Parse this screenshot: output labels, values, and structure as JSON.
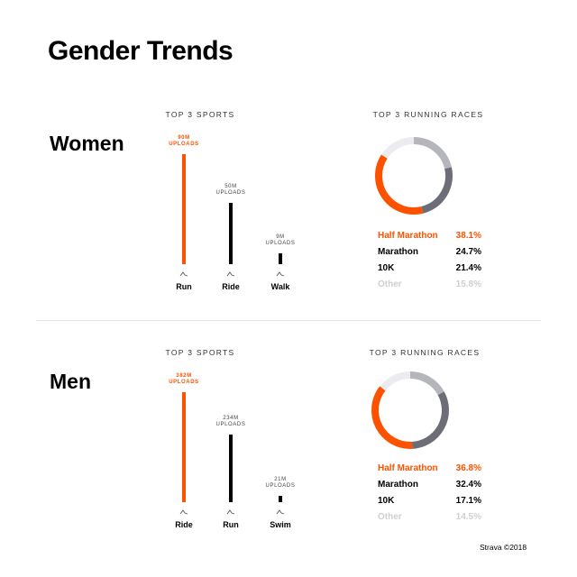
{
  "title": "Gender Trends",
  "footer": "Strava ©2018",
  "chart_data": [
    {
      "type": "bar",
      "section": "Women",
      "title": "TOP 3 SPORTS",
      "categories": [
        "Run",
        "Ride",
        "Walk"
      ],
      "values": [
        90000000,
        50000000,
        9000000
      ],
      "value_labels": [
        "90M UPLOADS",
        "50M UPLOADS",
        "9M UPLOADS"
      ],
      "colors": [
        "#fc5200",
        "#000000",
        "#000000"
      ]
    },
    {
      "type": "donut",
      "title": "TOP 3 RUNNING RACES",
      "categories": [
        "Half Marathon",
        "Marathon",
        "10K",
        "Other"
      ],
      "values": [
        38.1,
        24.7,
        21.4,
        15.8
      ],
      "value_labels": [
        "38.1%",
        "24.7%",
        "21.4%",
        "15.8%"
      ],
      "colors": [
        "#fc5200",
        "#6d6d78",
        "#b5b5bc",
        "#ececf0"
      ]
    },
    {
      "type": "bar",
      "section": "Men",
      "title": "TOP 3 SPORTS",
      "categories": [
        "Ride",
        "Run",
        "Swim"
      ],
      "values": [
        382000000,
        234000000,
        21000000
      ],
      "value_labels": [
        "382M UPLOADS",
        "234M UPLOADS",
        "21M UPLOADS"
      ],
      "colors": [
        "#fc5200",
        "#000000",
        "#000000"
      ]
    },
    {
      "type": "donut",
      "title": "TOP 3 RUNNING RACES",
      "categories": [
        "Half Marathon",
        "Marathon",
        "10K",
        "Other"
      ],
      "values": [
        36.8,
        32.4,
        17.1,
        14.5
      ],
      "value_labels": [
        "36.8%",
        "32.4%",
        "17.1%",
        "14.5%"
      ],
      "colors": [
        "#fc5200",
        "#6d6d78",
        "#b5b5bc",
        "#ececf0"
      ]
    }
  ]
}
